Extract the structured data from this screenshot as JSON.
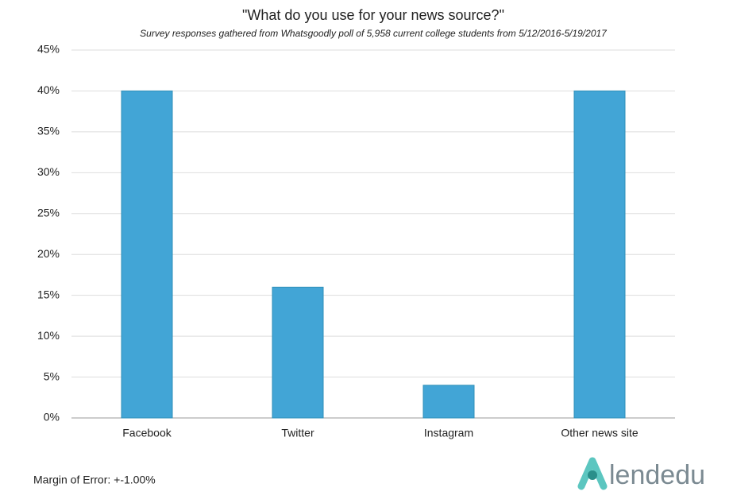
{
  "chart_data": {
    "type": "bar",
    "title": "\"What do you use for your news source?\"",
    "subtitle": "Survey responses gathered from Whatsgoodly poll of 5,958 current college students from 5/12/2016-5/19/2017",
    "categories": [
      "Facebook",
      "Twitter",
      "Instagram",
      "Other news site"
    ],
    "values": [
      40,
      16,
      4,
      40
    ],
    "color": "#42a5d6",
    "ylim": [
      0,
      45
    ],
    "yticks": [
      {
        "value": 0,
        "label": "0%"
      },
      {
        "value": 5,
        "label": "5%"
      },
      {
        "value": 10,
        "label": "10%"
      },
      {
        "value": 15,
        "label": "15%"
      },
      {
        "value": 20,
        "label": "20%"
      },
      {
        "value": 25,
        "label": "25%"
      },
      {
        "value": 30,
        "label": "30%"
      },
      {
        "value": 35,
        "label": "35%"
      },
      {
        "value": 40,
        "label": "40%"
      },
      {
        "value": 45,
        "label": "45%"
      }
    ],
    "grid": true,
    "footnote": "Margin of Error: +-1.00%"
  },
  "logo": "lendedu"
}
